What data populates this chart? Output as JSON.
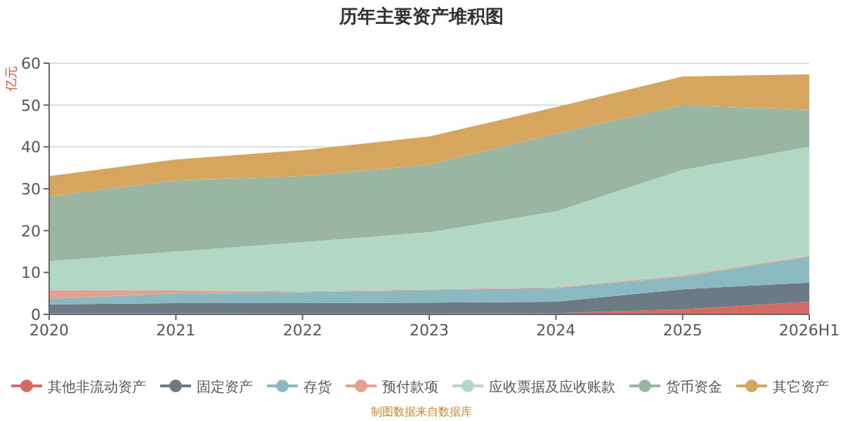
{
  "chart_data": {
    "type": "area",
    "stacked": true,
    "title": "历年主要资产堆积图",
    "ylabel": "亿元",
    "categories": [
      "2020",
      "2021",
      "2022",
      "2023",
      "2024",
      "2025",
      "2026H1"
    ],
    "ylim": [
      0,
      60
    ],
    "yticks": [
      0,
      10,
      20,
      30,
      40,
      50,
      60
    ],
    "grid": "y",
    "legend": "bottom",
    "annotations": [
      "制图数据来自数据库"
    ],
    "series": [
      {
        "name": "其他非流动资产",
        "color": "#d46a64",
        "values": [
          0.3,
          0.3,
          0.2,
          0.2,
          0.3,
          1.2,
          3.0
        ]
      },
      {
        "name": "固定资产",
        "color": "#6b7a85",
        "values": [
          2.1,
          2.4,
          2.5,
          2.6,
          2.7,
          4.8,
          4.6
        ]
      },
      {
        "name": "存货",
        "color": "#8bb9c1",
        "values": [
          1.3,
          2.3,
          2.6,
          3.0,
          3.3,
          3.0,
          6.2
        ]
      },
      {
        "name": "预付款项",
        "color": "#e5a190",
        "values": [
          2.0,
          0.7,
          0.2,
          0.2,
          0.2,
          0.3,
          0.2
        ]
      },
      {
        "name": "应收票据及应收账款",
        "color": "#b1d7c5",
        "values": [
          7.0,
          9.3,
          11.7,
          13.6,
          18.1,
          25.2,
          26.0
        ]
      },
      {
        "name": "货币资金",
        "color": "#9bb5a3",
        "values": [
          15.5,
          17.0,
          15.8,
          16.2,
          18.6,
          15.5,
          8.8
        ]
      },
      {
        "name": "其它资产",
        "color": "#d6a55e",
        "values": [
          4.8,
          5.0,
          6.2,
          6.7,
          6.3,
          6.8,
          8.5
        ]
      }
    ]
  }
}
